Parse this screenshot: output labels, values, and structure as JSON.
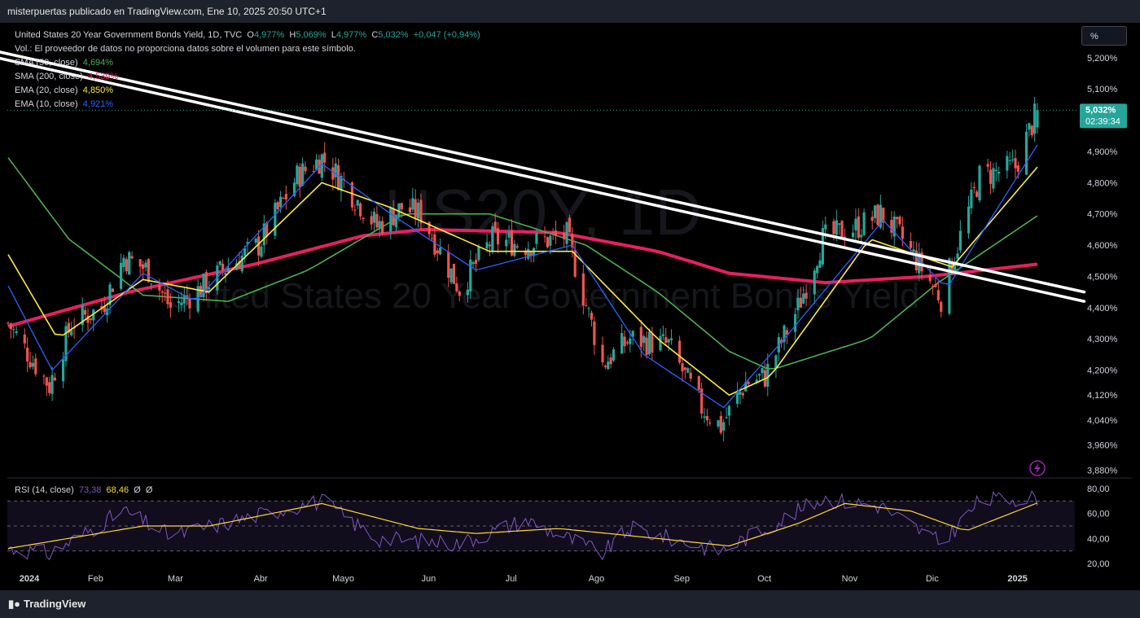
{
  "header": {
    "publisher": "misterpuertas publicado en TradingView.com, Ene 10, 2025 20:50 UTC+1"
  },
  "legend": {
    "title": "United States 20 Year Government Bonds Yield, 1D, TVC",
    "o_label": "O",
    "o": "4,977%",
    "h_label": "H",
    "h": "5,069%",
    "l_label": "L",
    "l": "4,977%",
    "c_label": "C",
    "c": "5,032%",
    "change": "+0,047 (+0,94%)",
    "vol": "Vol.: El proveedor de datos no proporciona datos sobre el volumen para este símbolo.",
    "sma50_label": "SMA (50, close)",
    "sma50": "4,694%",
    "sma200_label": "SMA (200, close)",
    "sma200": "4,539%",
    "ema20_label": "EMA (20, close)",
    "ema20": "4,850%",
    "ema10_label": "EMA (10, close)",
    "ema10": "4,921%"
  },
  "scale_button": "%",
  "watermark": {
    "ticker": "US20Y, 1D",
    "name": "United States 20 Year Government Bonds Yield"
  },
  "price_badge": {
    "price": "5,032%",
    "countdown": "02:39:34"
  },
  "rsi_legend": {
    "label": "RSI (14, close)",
    "rsi": "73,38",
    "ma": "68,46",
    "x1": "Ø",
    "x2": "Ø"
  },
  "footer": {
    "brand": "TradingView"
  },
  "colors": {
    "up": "#26a69a",
    "down": "#ef5350",
    "sma50": "#4caf50",
    "sma200": "#e91e63",
    "ema20": "#ffeb3b",
    "ema10": "#2962ff",
    "rsi": "#7e57c2",
    "rsi_ma": "#fdd835",
    "trendline": "#ffffff",
    "badge": "#26a69a"
  },
  "chart_data": {
    "type": "candlestick",
    "title": "United States 20 Year Government Bonds Yield, 1D, TVC",
    "y_axis": {
      "unit": "%",
      "ticks": [
        "5,200%",
        "5,100%",
        "4,900%",
        "4,800%",
        "4,700%",
        "4,600%",
        "4,500%",
        "4,400%",
        "4,300%",
        "4,200%",
        "4,120%",
        "4,040%",
        "3,960%",
        "3,880%"
      ],
      "range": [
        3.86,
        5.27
      ]
    },
    "x_axis": {
      "ticks": [
        "2024",
        "Feb",
        "Mar",
        "Abr",
        "Mayo",
        "Jun",
        "Jul",
        "Ago",
        "Sep",
        "Oct",
        "Nov",
        "Dic",
        "2025"
      ]
    },
    "price_path": [
      {
        "date": "2024-01-02",
        "close": 4.35
      },
      {
        "date": "2024-01-17",
        "close": 4.15
      },
      {
        "date": "2024-01-25",
        "close": 4.35
      },
      {
        "date": "2024-02-05",
        "close": 4.4
      },
      {
        "date": "2024-02-13",
        "close": 4.56
      },
      {
        "date": "2024-02-22",
        "close": 4.52
      },
      {
        "date": "2024-03-01",
        "close": 4.4
      },
      {
        "date": "2024-03-12",
        "close": 4.46
      },
      {
        "date": "2024-03-20",
        "close": 4.52
      },
      {
        "date": "2024-04-02",
        "close": 4.6
      },
      {
        "date": "2024-04-16",
        "close": 4.82
      },
      {
        "date": "2024-04-25",
        "close": 4.88
      },
      {
        "date": "2024-05-03",
        "close": 4.8
      },
      {
        "date": "2024-05-15",
        "close": 4.66
      },
      {
        "date": "2024-05-24",
        "close": 4.72
      },
      {
        "date": "2024-05-31",
        "close": 4.7
      },
      {
        "date": "2024-06-14",
        "close": 4.46
      },
      {
        "date": "2024-06-26",
        "close": 4.62
      },
      {
        "date": "2024-07-08",
        "close": 4.6
      },
      {
        "date": "2024-07-23",
        "close": 4.63
      },
      {
        "date": "2024-08-05",
        "close": 4.22
      },
      {
        "date": "2024-08-15",
        "close": 4.3
      },
      {
        "date": "2024-08-29",
        "close": 4.28
      },
      {
        "date": "2024-09-10",
        "close": 4.08
      },
      {
        "date": "2024-09-17",
        "close": 4.02
      },
      {
        "date": "2024-09-26",
        "close": 4.16
      },
      {
        "date": "2024-10-03",
        "close": 4.18
      },
      {
        "date": "2024-10-15",
        "close": 4.4
      },
      {
        "date": "2024-10-24",
        "close": 4.62
      },
      {
        "date": "2024-11-06",
        "close": 4.66
      },
      {
        "date": "2024-11-14",
        "close": 4.7
      },
      {
        "date": "2024-11-22",
        "close": 4.62
      },
      {
        "date": "2024-12-06",
        "close": 4.43
      },
      {
        "date": "2024-12-12",
        "close": 4.6
      },
      {
        "date": "2024-12-20",
        "close": 4.82
      },
      {
        "date": "2025-01-02",
        "close": 4.85
      },
      {
        "date": "2025-01-10",
        "close": 5.032
      }
    ],
    "sma200_path": [
      {
        "date": "2024-01-02",
        "value": 4.34
      },
      {
        "date": "2024-02-15",
        "value": 4.45
      },
      {
        "date": "2024-04-01",
        "value": 4.54
      },
      {
        "date": "2024-05-10",
        "value": 4.63
      },
      {
        "date": "2024-06-01",
        "value": 4.65
      },
      {
        "date": "2024-07-20",
        "value": 4.64
      },
      {
        "date": "2024-08-25",
        "value": 4.58
      },
      {
        "date": "2024-09-20",
        "value": 4.51
      },
      {
        "date": "2024-10-25",
        "value": 4.48
      },
      {
        "date": "2024-12-01",
        "value": 4.5
      },
      {
        "date": "2025-01-10",
        "value": 4.539
      }
    ],
    "sma50_path": [
      {
        "date": "2024-01-02",
        "value": 4.88
      },
      {
        "date": "2024-01-24",
        "value": 4.62
      },
      {
        "date": "2024-02-20",
        "value": 4.44
      },
      {
        "date": "2024-03-22",
        "value": 4.42
      },
      {
        "date": "2024-04-20",
        "value": 4.52
      },
      {
        "date": "2024-05-25",
        "value": 4.7
      },
      {
        "date": "2024-06-25",
        "value": 4.7
      },
      {
        "date": "2024-07-30",
        "value": 4.6
      },
      {
        "date": "2024-08-25",
        "value": 4.45
      },
      {
        "date": "2024-09-20",
        "value": 4.26
      },
      {
        "date": "2024-10-05",
        "value": 4.2
      },
      {
        "date": "2024-11-10",
        "value": 4.3
      },
      {
        "date": "2024-12-05",
        "value": 4.48
      },
      {
        "date": "2025-01-10",
        "value": 4.694
      }
    ],
    "ema20_path": [
      {
        "date": "2024-01-02",
        "value": 4.57
      },
      {
        "date": "2024-01-20",
        "value": 4.3
      },
      {
        "date": "2024-02-20",
        "value": 4.49
      },
      {
        "date": "2024-03-15",
        "value": 4.45
      },
      {
        "date": "2024-04-25",
        "value": 4.8
      },
      {
        "date": "2024-05-20",
        "value": 4.72
      },
      {
        "date": "2024-06-25",
        "value": 4.58
      },
      {
        "date": "2024-07-25",
        "value": 4.58
      },
      {
        "date": "2024-08-25",
        "value": 4.3
      },
      {
        "date": "2024-09-20",
        "value": 4.12
      },
      {
        "date": "2024-10-05",
        "value": 4.18
      },
      {
        "date": "2024-11-10",
        "value": 4.62
      },
      {
        "date": "2024-12-10",
        "value": 4.53
      },
      {
        "date": "2025-01-10",
        "value": 4.85
      }
    ],
    "ema10_path": [
      {
        "date": "2024-01-02",
        "value": 4.47
      },
      {
        "date": "2024-01-18",
        "value": 4.2
      },
      {
        "date": "2024-02-20",
        "value": 4.51
      },
      {
        "date": "2024-03-10",
        "value": 4.42
      },
      {
        "date": "2024-04-25",
        "value": 4.86
      },
      {
        "date": "2024-05-20",
        "value": 4.7
      },
      {
        "date": "2024-06-20",
        "value": 4.52
      },
      {
        "date": "2024-07-25",
        "value": 4.6
      },
      {
        "date": "2024-08-20",
        "value": 4.25
      },
      {
        "date": "2024-09-18",
        "value": 4.08
      },
      {
        "date": "2024-10-10",
        "value": 4.3
      },
      {
        "date": "2024-11-15",
        "value": 4.68
      },
      {
        "date": "2024-12-08",
        "value": 4.46
      },
      {
        "date": "2025-01-10",
        "value": 4.921
      }
    ],
    "trendlines": [
      {
        "from": {
          "date": "2023-12-29",
          "value": 5.22
        },
        "to": {
          "date": "2025-01-27",
          "value": 4.45
        }
      },
      {
        "from": {
          "date": "2023-12-29",
          "value": 5.2
        },
        "to": {
          "date": "2025-01-27",
          "value": 4.42
        }
      }
    ],
    "rsi_panel": {
      "label": "RSI (14, close)",
      "ticks": [
        "80,00",
        "60,00",
        "40,00",
        "20,00"
      ],
      "range": [
        20,
        80
      ],
      "bands": [
        70,
        50,
        30
      ],
      "rsi_path": [
        {
          "date": "2024-01-02",
          "value": 32
        },
        {
          "date": "2024-01-17",
          "value": 28
        },
        {
          "date": "2024-02-13",
          "value": 62
        },
        {
          "date": "2024-03-01",
          "value": 42
        },
        {
          "date": "2024-04-16",
          "value": 66
        },
        {
          "date": "2024-04-25",
          "value": 70
        },
        {
          "date": "2024-05-15",
          "value": 40
        },
        {
          "date": "2024-06-14",
          "value": 36
        },
        {
          "date": "2024-07-08",
          "value": 55
        },
        {
          "date": "2024-08-05",
          "value": 28
        },
        {
          "date": "2024-08-15",
          "value": 48
        },
        {
          "date": "2024-09-17",
          "value": 30
        },
        {
          "date": "2024-10-24",
          "value": 72
        },
        {
          "date": "2024-11-14",
          "value": 66
        },
        {
          "date": "2024-12-06",
          "value": 36
        },
        {
          "date": "2024-12-20",
          "value": 70
        },
        {
          "date": "2025-01-10",
          "value": 73.38
        }
      ],
      "ma_path": [
        {
          "date": "2024-01-02",
          "value": 32
        },
        {
          "date": "2024-02-20",
          "value": 50
        },
        {
          "date": "2024-03-15",
          "value": 50
        },
        {
          "date": "2024-04-25",
          "value": 68
        },
        {
          "date": "2024-05-30",
          "value": 48
        },
        {
          "date": "2024-06-20",
          "value": 44
        },
        {
          "date": "2024-07-20",
          "value": 48
        },
        {
          "date": "2024-08-25",
          "value": 40
        },
        {
          "date": "2024-09-20",
          "value": 34
        },
        {
          "date": "2024-10-15",
          "value": 52
        },
        {
          "date": "2024-11-01",
          "value": 68
        },
        {
          "date": "2024-11-25",
          "value": 62
        },
        {
          "date": "2024-12-15",
          "value": 46
        },
        {
          "date": "2025-01-10",
          "value": 68.46
        }
      ]
    }
  }
}
